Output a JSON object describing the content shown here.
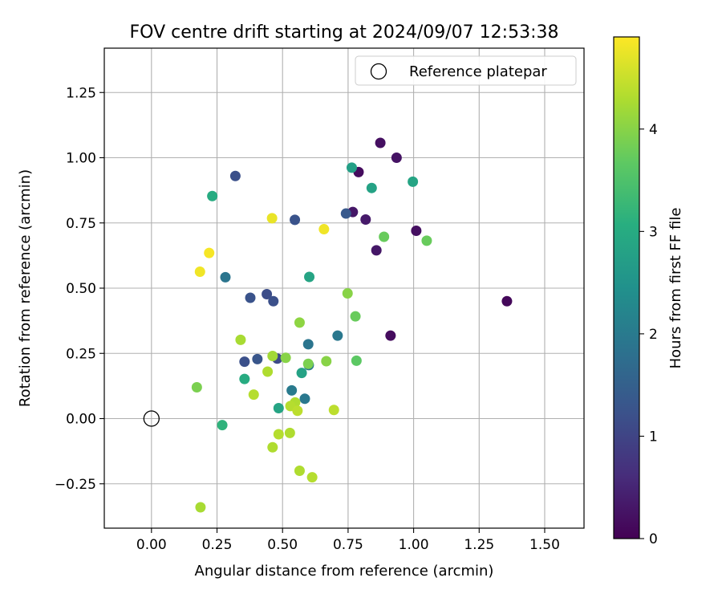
{
  "chart_data": {
    "type": "scatter",
    "title": "FOV centre drift starting at 2024/09/07 12:53:38",
    "xlabel": "Angular distance from reference (arcmin)",
    "ylabel": "Rotation from reference (arcmin)",
    "xlim": [
      -0.18,
      1.65
    ],
    "ylim": [
      -0.42,
      1.42
    ],
    "xticks": [
      0.0,
      0.25,
      0.5,
      0.75,
      1.0,
      1.25,
      1.5
    ],
    "xtick_labels": [
      "0.00",
      "0.25",
      "0.50",
      "0.75",
      "1.00",
      "1.25",
      "1.50"
    ],
    "yticks": [
      -0.25,
      0.0,
      0.25,
      0.5,
      0.75,
      1.0,
      1.25
    ],
    "ytick_labels": [
      "−0.25",
      "0.00",
      "0.25",
      "0.50",
      "0.75",
      "1.00",
      "1.25"
    ],
    "grid": true,
    "legend_position": "top-right",
    "legend": [
      {
        "label": "Reference platepar",
        "marker": "open-circle",
        "x": 0.0,
        "y": 0.0
      }
    ],
    "colorbar": {
      "label": "Hours from first FF file",
      "colormap": "viridis",
      "range": [
        0,
        4.9
      ],
      "ticks": [
        0,
        1,
        2,
        3,
        4
      ],
      "tick_labels": [
        "0",
        "1",
        "2",
        "3",
        "4"
      ]
    },
    "points": [
      {
        "x": 0.873,
        "y": 1.057,
        "c": 0.2
      },
      {
        "x": 0.935,
        "y": 1.0,
        "c": 0.25
      },
      {
        "x": 0.79,
        "y": 0.945,
        "c": 0.15
      },
      {
        "x": 0.768,
        "y": 0.792,
        "c": 0.3
      },
      {
        "x": 0.817,
        "y": 0.763,
        "c": 0.35
      },
      {
        "x": 1.01,
        "y": 0.72,
        "c": 0.2
      },
      {
        "x": 0.858,
        "y": 0.645,
        "c": 0.3
      },
      {
        "x": 1.356,
        "y": 0.45,
        "c": 0.1
      },
      {
        "x": 0.912,
        "y": 0.318,
        "c": 0.15
      },
      {
        "x": 0.32,
        "y": 0.93,
        "c": 1.2
      },
      {
        "x": 0.547,
        "y": 0.762,
        "c": 1.25
      },
      {
        "x": 0.742,
        "y": 0.786,
        "c": 1.35
      },
      {
        "x": 0.44,
        "y": 0.477,
        "c": 1.15
      },
      {
        "x": 0.377,
        "y": 0.463,
        "c": 1.25
      },
      {
        "x": 0.465,
        "y": 0.45,
        "c": 1.2
      },
      {
        "x": 0.355,
        "y": 0.218,
        "c": 1.2
      },
      {
        "x": 0.404,
        "y": 0.228,
        "c": 1.3
      },
      {
        "x": 0.48,
        "y": 0.23,
        "c": 1.1
      },
      {
        "x": 0.282,
        "y": 0.542,
        "c": 1.9
      },
      {
        "x": 0.71,
        "y": 0.318,
        "c": 1.95
      },
      {
        "x": 0.598,
        "y": 0.285,
        "c": 1.9
      },
      {
        "x": 0.6,
        "y": 0.205,
        "c": 2.0
      },
      {
        "x": 0.535,
        "y": 0.108,
        "c": 2.0
      },
      {
        "x": 0.585,
        "y": 0.076,
        "c": 1.95
      },
      {
        "x": 0.764,
        "y": 0.962,
        "c": 2.75
      },
      {
        "x": 0.84,
        "y": 0.884,
        "c": 2.8
      },
      {
        "x": 0.997,
        "y": 0.908,
        "c": 2.85
      },
      {
        "x": 0.232,
        "y": 0.853,
        "c": 3.0
      },
      {
        "x": 0.602,
        "y": 0.543,
        "c": 2.85
      },
      {
        "x": 0.573,
        "y": 0.175,
        "c": 2.8
      },
      {
        "x": 0.355,
        "y": 0.152,
        "c": 3.0
      },
      {
        "x": 0.485,
        "y": 0.04,
        "c": 2.85
      },
      {
        "x": 0.27,
        "y": -0.025,
        "c": 3.15
      },
      {
        "x": 0.887,
        "y": 0.697,
        "c": 3.75
      },
      {
        "x": 1.05,
        "y": 0.682,
        "c": 3.75
      },
      {
        "x": 0.748,
        "y": 0.48,
        "c": 4.0
      },
      {
        "x": 0.778,
        "y": 0.392,
        "c": 3.75
      },
      {
        "x": 0.782,
        "y": 0.222,
        "c": 3.65
      },
      {
        "x": 0.667,
        "y": 0.22,
        "c": 4.0
      },
      {
        "x": 0.598,
        "y": 0.21,
        "c": 3.9
      },
      {
        "x": 0.512,
        "y": 0.233,
        "c": 4.0
      },
      {
        "x": 0.565,
        "y": 0.368,
        "c": 4.05
      },
      {
        "x": 0.173,
        "y": 0.12,
        "c": 3.9
      },
      {
        "x": 0.462,
        "y": 0.24,
        "c": 4.2
      },
      {
        "x": 0.34,
        "y": 0.302,
        "c": 4.25
      },
      {
        "x": 0.443,
        "y": 0.18,
        "c": 4.3
      },
      {
        "x": 0.39,
        "y": 0.092,
        "c": 4.35
      },
      {
        "x": 0.548,
        "y": 0.062,
        "c": 4.3
      },
      {
        "x": 0.53,
        "y": 0.048,
        "c": 4.35
      },
      {
        "x": 0.557,
        "y": 0.03,
        "c": 4.4
      },
      {
        "x": 0.696,
        "y": 0.033,
        "c": 4.4
      },
      {
        "x": 0.485,
        "y": -0.06,
        "c": 4.35
      },
      {
        "x": 0.528,
        "y": -0.055,
        "c": 4.3
      },
      {
        "x": 0.462,
        "y": -0.11,
        "c": 4.3
      },
      {
        "x": 0.565,
        "y": -0.2,
        "c": 4.3
      },
      {
        "x": 0.613,
        "y": -0.225,
        "c": 4.35
      },
      {
        "x": 0.187,
        "y": -0.34,
        "c": 4.25
      },
      {
        "x": 0.46,
        "y": 0.768,
        "c": 4.75
      },
      {
        "x": 0.658,
        "y": 0.726,
        "c": 4.8
      },
      {
        "x": 0.22,
        "y": 0.635,
        "c": 4.85
      },
      {
        "x": 0.185,
        "y": 0.563,
        "c": 4.8
      }
    ]
  }
}
